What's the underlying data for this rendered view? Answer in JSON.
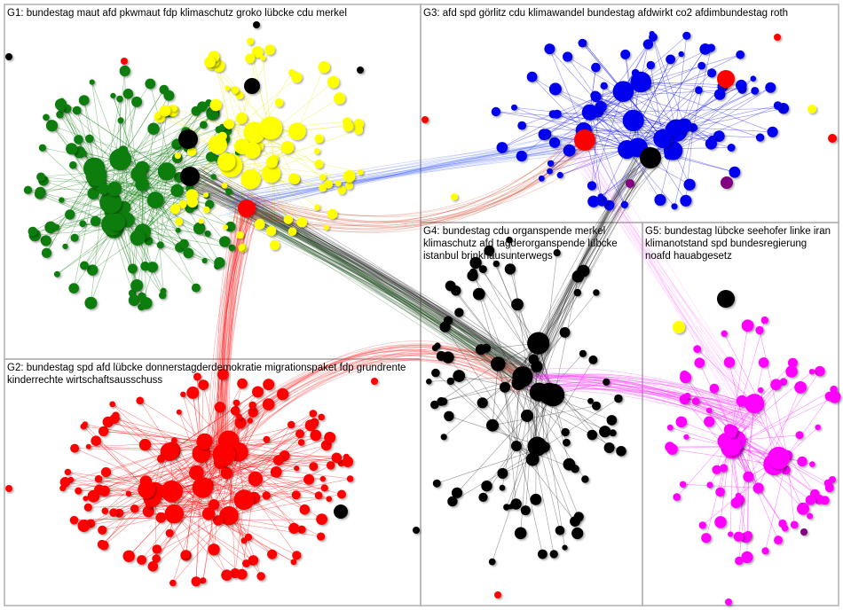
{
  "groups": [
    {
      "id": "G1",
      "label": "G1: bundestag maut afd pkwmaut fdp klimaschutz groko lübcke cdu merkel",
      "color": "#0a7d0a"
    },
    {
      "id": "G2",
      "label": "G2: bundestag spd afd lübcke donnerstagderdemokratie migrationspaket fdp grundrente\nkinderrechte wirtschaftsausschuss",
      "color": "#ff0000"
    },
    {
      "id": "G3",
      "label": "G3: afd spd görlitz cdu klimawandel bundestag afdwirkt co2 afdimbundestag roth",
      "color": "#0000ee"
    },
    {
      "id": "G4",
      "label": "G4: bundestag cdu organspende merkel\nklimaschutz afd tagderorganspende lübcke\nistanbul brinkhausunterwegs",
      "color": "#000000"
    },
    {
      "id": "G5",
      "label": "G5: bundestag lübcke seehofer linke iran\nklimanotstand spd bundesregierung\nnoafd hauabgesetz",
      "color": "#ff00ff"
    }
  ],
  "node_colors": {
    "green": "#0a7d0a",
    "yellow": "#ffff00",
    "red": "#ff0000",
    "blue": "#0000ee",
    "black": "#000000",
    "magenta": "#ff00ff",
    "purple": "#800080"
  }
}
